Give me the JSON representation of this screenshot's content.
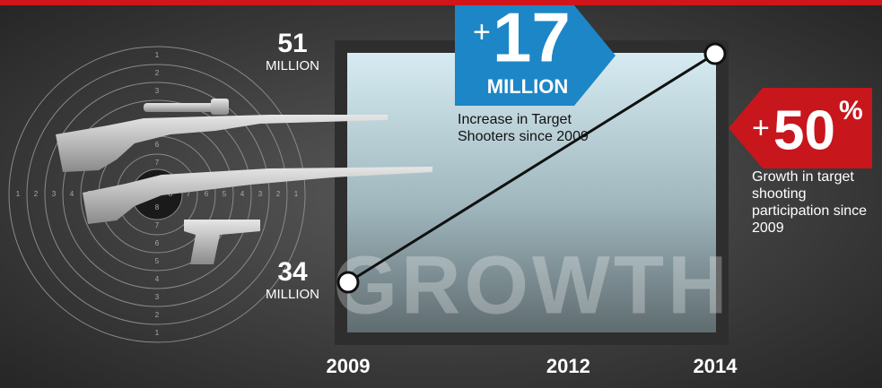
{
  "chart_data": {
    "type": "line",
    "x": [
      2009,
      2014
    ],
    "values": [
      34,
      51
    ],
    "xlim": [
      2009,
      2014
    ],
    "xticks": [
      2009,
      2012,
      2014
    ],
    "value_unit": "MILLION",
    "watermark": "GROWTH",
    "color": "#111111",
    "increase": {
      "prefix": "+",
      "number": "17",
      "unit": "MILLION",
      "text": "Increase in Target Shooters since 2009"
    },
    "growth": {
      "prefix": "+",
      "number": "50",
      "suffix": "%",
      "text": "Growth in target shooting participation since 2009"
    },
    "target_numbers": [
      1,
      2,
      3,
      4,
      5,
      6,
      7,
      8
    ]
  }
}
